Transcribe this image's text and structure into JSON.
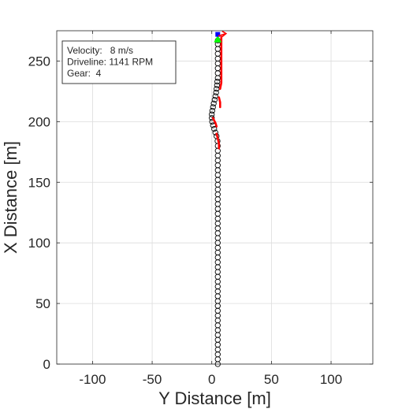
{
  "chart_data": {
    "type": "scatter",
    "title": "",
    "xlabel": "Y Distance [m]",
    "ylabel": "X Distance [m]",
    "xlim": [
      -130,
      135
    ],
    "ylim": [
      0,
      275
    ],
    "xticks": [
      -100,
      -50,
      0,
      50,
      100
    ],
    "yticks": [
      0,
      50,
      100,
      150,
      200,
      250
    ],
    "xtick_labels": [
      "-100",
      "-50",
      "0",
      "50",
      "100"
    ],
    "ytick_labels": [
      "0",
      "50",
      "100",
      "150",
      "200",
      "250"
    ],
    "grid": true,
    "info_box": {
      "lines": [
        "Velocity:   8 m/s",
        "Driveline: 1141 RPM",
        "Gear:  4"
      ],
      "placement": "top-left"
    },
    "series": [
      {
        "role": "vehicle path (circle markers)",
        "color": "#000000",
        "marker": "circle",
        "points": [
          [
            5,
            0
          ],
          [
            5,
            4
          ],
          [
            5,
            8
          ],
          [
            5,
            12
          ],
          [
            5,
            16
          ],
          [
            5,
            20
          ],
          [
            5,
            24
          ],
          [
            5,
            28
          ],
          [
            5,
            32
          ],
          [
            5,
            36
          ],
          [
            5,
            40
          ],
          [
            5,
            44
          ],
          [
            5,
            48
          ],
          [
            5,
            52
          ],
          [
            5,
            56
          ],
          [
            5,
            60
          ],
          [
            5,
            64
          ],
          [
            5,
            68
          ],
          [
            5,
            72
          ],
          [
            5,
            76
          ],
          [
            5,
            80
          ],
          [
            5,
            84
          ],
          [
            5,
            88
          ],
          [
            5,
            92
          ],
          [
            5,
            96
          ],
          [
            5,
            100
          ],
          [
            5,
            104
          ],
          [
            5,
            108
          ],
          [
            5,
            112
          ],
          [
            5,
            116
          ],
          [
            5,
            120
          ],
          [
            5,
            124
          ],
          [
            5,
            128
          ],
          [
            5,
            132
          ],
          [
            5,
            136
          ],
          [
            5,
            140
          ],
          [
            5,
            144
          ],
          [
            5,
            148
          ],
          [
            5,
            152
          ],
          [
            5,
            156
          ],
          [
            5,
            160
          ],
          [
            5,
            164
          ],
          [
            5,
            168
          ],
          [
            5,
            172
          ],
          [
            5,
            176
          ],
          [
            5,
            180
          ],
          [
            4.8,
            184
          ],
          [
            4,
            188
          ],
          [
            3,
            191
          ],
          [
            2,
            194
          ],
          [
            1,
            197
          ],
          [
            0.3,
            200
          ],
          [
            0,
            203
          ],
          [
            0,
            206
          ],
          [
            0.4,
            209
          ],
          [
            1,
            212
          ],
          [
            1.6,
            215
          ],
          [
            2.4,
            218
          ],
          [
            3,
            221
          ],
          [
            3.6,
            224
          ],
          [
            4,
            227
          ],
          [
            4.4,
            230
          ],
          [
            4.6,
            233
          ],
          [
            5,
            236
          ],
          [
            5,
            240
          ],
          [
            5,
            244
          ],
          [
            5,
            248
          ],
          [
            5,
            252
          ],
          [
            5,
            256
          ],
          [
            5,
            260
          ],
          [
            5,
            264
          ],
          [
            5,
            267
          ]
        ]
      },
      {
        "role": "vehicle trail (red)",
        "color": "#ff0000",
        "marker": "line",
        "segments": [
          [
            [
              6,
              178
            ],
            [
              6,
              182
            ],
            [
              5,
              186
            ],
            [
              4,
              190
            ]
          ],
          [
            [
              4,
              196
            ],
            [
              3,
              199
            ],
            [
              2,
              201
            ],
            [
              1,
              203
            ]
          ],
          [
            [
              7,
              212
            ],
            [
              7,
              216
            ],
            [
              6,
              220
            ]
          ],
          [
            [
              7,
              227
            ],
            [
              8,
              232
            ],
            [
              8,
              240
            ],
            [
              8,
              248
            ],
            [
              8,
              256
            ],
            [
              8,
              264
            ],
            [
              8,
              270
            ]
          ]
        ]
      },
      {
        "role": "target marker (green)",
        "color": "#00ff00",
        "marker": "triangle",
        "points": [
          [
            5,
            268
          ]
        ]
      },
      {
        "role": "vehicle marker (blue)",
        "color": "#0000ff",
        "marker": "square",
        "points": [
          [
            5,
            272
          ]
        ]
      },
      {
        "role": "look-ahead marker (red)",
        "color": "#ff0000",
        "marker": "arrow",
        "points": [
          [
            8,
            272
          ]
        ]
      }
    ]
  }
}
